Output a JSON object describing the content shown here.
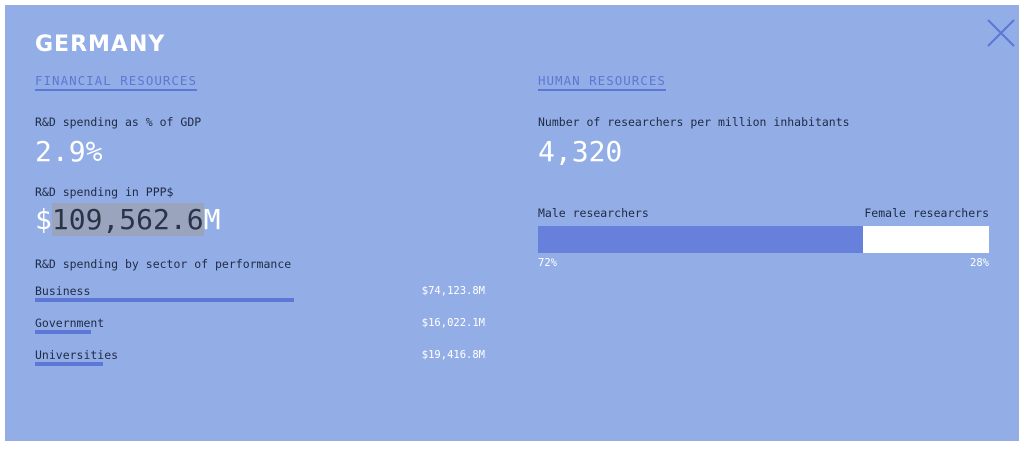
{
  "close_icon": "close-x-icon",
  "country": "GERMANY",
  "financial": {
    "section_title": "FINANCIAL RESOURCES",
    "gdp_label": "R&D spending as % of GDP",
    "gdp_value": "2.9%",
    "ppp_label": "R&D spending in PPP$",
    "ppp_prefix": "$",
    "ppp_value": "109,562.6",
    "ppp_suffix": "M",
    "sector_label": "R&D spending by sector of performance",
    "sectors": [
      {
        "name": "Business",
        "value": "$74,123.8M",
        "amount": 74123.8
      },
      {
        "name": "Government",
        "value": "$16,022.1M",
        "amount": 16022.1
      },
      {
        "name": "Universities",
        "value": "$19,416.8M",
        "amount": 19416.8
      }
    ]
  },
  "human": {
    "section_title": "HUMAN RESOURCES",
    "researchers_label": "Number of researchers per million inhabitants",
    "researchers_value": "4,320",
    "male_label": "Male researchers",
    "female_label": "Female researchers",
    "male_pct_text": "72%",
    "female_pct_text": "28%",
    "male_share": 0.72
  },
  "colors": {
    "panel_bg": "#93aee6",
    "accent": "#5d77d6",
    "male_bar": "#6680dc",
    "female_bar": "#ffffff"
  }
}
